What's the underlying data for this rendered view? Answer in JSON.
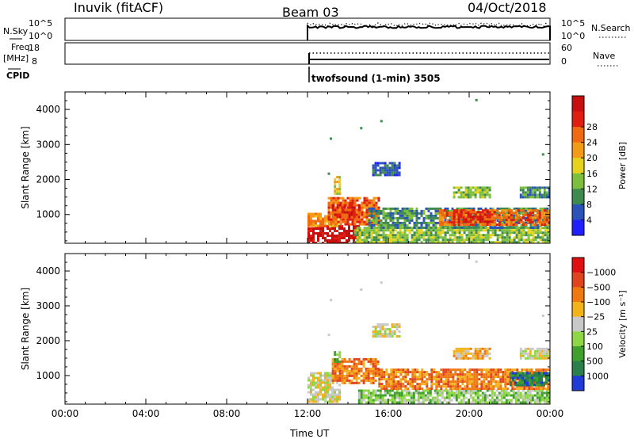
{
  "header": {
    "station": "Inuvik (fitACF)",
    "beam": "Beam 03",
    "date": "04/Oct/2018"
  },
  "strips": {
    "nsky": {
      "left_label": "N.Sky",
      "right_label": "N.Search",
      "left_ticks": [
        "10^5",
        "10^0"
      ],
      "right_ticks": [
        "10^5",
        "10^0"
      ]
    },
    "freq": {
      "left_label_line1": "Freq.",
      "left_label_line2": "[MHz]",
      "right_label": "Nave",
      "left_ticks": [
        "18",
        "8"
      ],
      "right_ticks": [
        "60",
        "0"
      ]
    },
    "cpid": {
      "label": "CPID",
      "program": "twofsound (1-min) 3505"
    }
  },
  "chart_data": [
    {
      "type": "heatmap",
      "title": "",
      "xlabel": "",
      "ylabel": "Slant Range [km]",
      "x_tick_labels": [
        "00:00",
        "04:00",
        "08:00",
        "12:00",
        "16:00",
        "20:00",
        "00:00"
      ],
      "xlim_hours": [
        0,
        24
      ],
      "y_ticks": [
        1000,
        2000,
        3000,
        4000
      ],
      "ylim": [
        180,
        4500
      ],
      "data_start_hour": 12,
      "colorbar": {
        "label": "Power [dB]",
        "ticks": [
          "4",
          "8",
          "12",
          "16",
          "20",
          "24",
          "28"
        ],
        "colors": [
          "#1f1fff",
          "#2a52b8",
          "#3f8a4f",
          "#7bbf3c",
          "#e6d21c",
          "#f39a16",
          "#f06a10",
          "#e01e10",
          "#c80f0f"
        ]
      },
      "regions": [
        {
          "t0": 12.0,
          "t1": 14.5,
          "r0": 200,
          "r1": 700,
          "level": 8
        },
        {
          "t0": 12.0,
          "t1": 13.5,
          "r0": 700,
          "r1": 1050,
          "level": 5
        },
        {
          "t0": 13.0,
          "t1": 15.5,
          "r0": 750,
          "r1": 1500,
          "level": 6
        },
        {
          "t0": 13.2,
          "t1": 14.6,
          "r0": 900,
          "r1": 1300,
          "level": 7
        },
        {
          "t0": 14.3,
          "t1": 24.0,
          "r0": 200,
          "r1": 650,
          "level": 3
        },
        {
          "t0": 15.0,
          "t1": 24.0,
          "r0": 650,
          "r1": 1200,
          "level": 2
        },
        {
          "t0": 18.5,
          "t1": 24.0,
          "r0": 700,
          "r1": 1150,
          "level": 6
        },
        {
          "t0": 19.2,
          "t1": 21.3,
          "r0": 800,
          "r1": 1100,
          "level": 7
        },
        {
          "t0": 15.2,
          "t1": 16.5,
          "r0": 2150,
          "r1": 2500,
          "level": 1
        },
        {
          "t0": 19.2,
          "t1": 21.0,
          "r0": 1500,
          "r1": 1800,
          "level": 3
        },
        {
          "t0": 22.5,
          "t1": 24.0,
          "r0": 1500,
          "r1": 1800,
          "level": 2
        },
        {
          "t0": 13.3,
          "t1": 13.6,
          "r0": 1600,
          "r1": 2100,
          "level": 4
        }
      ]
    },
    {
      "type": "heatmap",
      "title": "",
      "xlabel": "Time UT",
      "ylabel": "Slant Range [km]",
      "x_tick_labels": [
        "00:00",
        "04:00",
        "08:00",
        "12:00",
        "16:00",
        "20:00",
        "00:00"
      ],
      "xlim_hours": [
        0,
        24
      ],
      "y_ticks": [
        1000,
        2000,
        3000,
        4000
      ],
      "ylim": [
        180,
        4500
      ],
      "data_start_hour": 12,
      "colorbar": {
        "label": "Velocity [m s⁻¹]",
        "ticks": [
          "1000",
          "500",
          "100",
          "25",
          "−25",
          "−100",
          "−500",
          "−1000"
        ],
        "colors": [
          "#1f3ad6",
          "#2a7f4a",
          "#3fa02e",
          "#8fd646",
          "#c8c8c8",
          "#f2b21a",
          "#f07810",
          "#e0441e",
          "#e01010"
        ]
      },
      "regions": [
        {
          "t0": 12.0,
          "t1": 13.6,
          "r0": 250,
          "r1": 1100,
          "level": 4
        },
        {
          "t0": 13.2,
          "t1": 15.5,
          "r0": 800,
          "r1": 1500,
          "level": 6
        },
        {
          "t0": 14.5,
          "t1": 24.0,
          "r0": 200,
          "r1": 600,
          "level": 3
        },
        {
          "t0": 15.5,
          "t1": 24.0,
          "r0": 600,
          "r1": 1200,
          "level": 6
        },
        {
          "t0": 22.0,
          "t1": 24.0,
          "r0": 700,
          "r1": 1100,
          "level": 1
        },
        {
          "t0": 15.2,
          "t1": 16.5,
          "r0": 2150,
          "r1": 2500,
          "level": 4
        },
        {
          "t0": 19.2,
          "t1": 21.0,
          "r0": 1500,
          "r1": 1800,
          "level": 5
        },
        {
          "t0": 22.5,
          "t1": 24.0,
          "r0": 1500,
          "r1": 1800,
          "level": 4
        },
        {
          "t0": 13.3,
          "t1": 13.6,
          "r0": 1400,
          "r1": 1700,
          "level": 2
        }
      ]
    }
  ]
}
